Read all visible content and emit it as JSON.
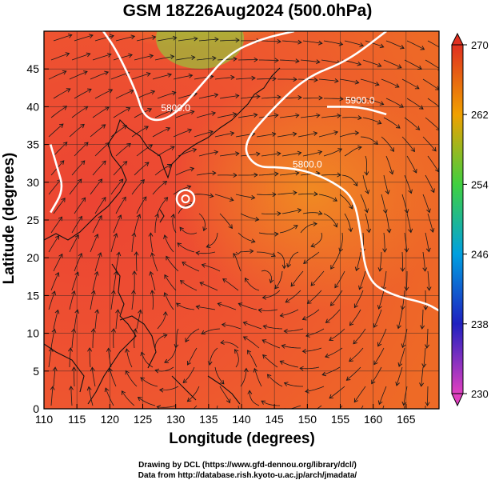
{
  "title": "GSM 18Z26Aug2024 (500.0hPa)",
  "xlabel": "Longitude (degrees)",
  "ylabel": "Latitude  (degrees)",
  "credits": {
    "line1": "Drawing by DCL (https://www.gfd-dennou.org/library/dcl/)",
    "line2": "Data from http://database.rish.kyoto-u.ac.jp/arch/jmadata/"
  },
  "chart_data": {
    "type": "heatmap",
    "xlim": [
      110,
      170
    ],
    "ylim": [
      0,
      50
    ],
    "xticks": [
      "110",
      "115",
      "120",
      "125",
      "130",
      "135",
      "140",
      "145",
      "150",
      "155",
      "160",
      "165"
    ],
    "yticks": [
      "0",
      "5",
      "10",
      "15",
      "20",
      "25",
      "30",
      "35",
      "40",
      "45"
    ],
    "grid": true,
    "colorbar": {
      "range": [
        230,
        270
      ],
      "ticks": [
        "230",
        "238",
        "246",
        "254",
        "262",
        "270"
      ],
      "placement": "right",
      "colors": [
        "#e040c0",
        "#2020c0",
        "#00a0e0",
        "#40d040",
        "#f0a000",
        "#e03020"
      ]
    },
    "contours": [
      {
        "label": "5800.0",
        "points": [
          [
            119,
            50
          ],
          [
            121,
            47.5
          ],
          [
            124,
            42
          ],
          [
            125,
            39
          ],
          [
            127,
            38
          ],
          [
            130,
            39
          ],
          [
            134,
            43
          ],
          [
            138,
            47
          ],
          [
            143,
            49
          ],
          [
            148,
            50
          ]
        ]
      },
      {
        "label": "5800.0",
        "points": [
          [
            162,
            50
          ],
          [
            156,
            46
          ],
          [
            150,
            44
          ],
          [
            145,
            40
          ],
          [
            140,
            35
          ],
          [
            142,
            32
          ],
          [
            146,
            32
          ],
          [
            150,
            31.5
          ],
          [
            154,
            30
          ],
          [
            157,
            28
          ],
          [
            158,
            24
          ],
          [
            159,
            17
          ],
          [
            163,
            15
          ],
          [
            168,
            14
          ],
          [
            170,
            13
          ]
        ]
      },
      {
        "label": "5900.0",
        "points": [
          [
            153,
            40
          ],
          [
            158,
            40
          ],
          [
            162,
            39
          ]
        ]
      },
      {
        "label": "",
        "points": [
          [
            111,
            35
          ],
          [
            112,
            32
          ],
          [
            113,
            29
          ],
          [
            111,
            26
          ]
        ]
      }
    ],
    "typhoon_center": [
      131.5,
      27.8
    ]
  }
}
